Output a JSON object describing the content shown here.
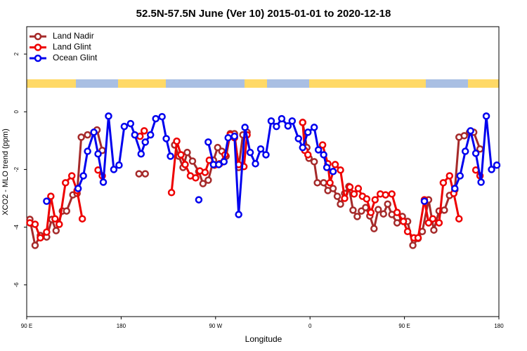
{
  "chart_data": {
    "type": "line",
    "title": "52.5N-57.5N June (Ver 10)   2015-01-01 to 2020-12-18",
    "x_label": "Longitude",
    "y_label": "XCO2 - MLO trend (ppm)",
    "xlim": [
      90,
      540
    ],
    "ylim": [
      -7.1,
      2.95
    ],
    "xticks": [
      {
        "value": 90,
        "label": "90 E"
      },
      180,
      {
        "value": 270,
        "label": "90 W"
      },
      {
        "value": 360,
        "label": "0"
      },
      {
        "value": 450,
        "label": "90 E"
      },
      {
        "value": 540,
        "label": "180"
      }
    ],
    "yticks": [
      -6,
      -4,
      -2,
      0,
      2
    ],
    "legend": "top-left",
    "series": [
      {
        "name": "Land Nadir",
        "color": "#a52a2a",
        "x": [
          93,
          98,
          103,
          109,
          114,
          118,
          124,
          128,
          134,
          138,
          142,
          148,
          157,
          162,
          null,
          197,
          203,
          null,
          231,
          235,
          239,
          243,
          248,
          254,
          258,
          263,
          268,
          272,
          276,
          280,
          284,
          288,
          292,
          296,
          300,
          null,
          353,
          357,
          359,
          364,
          367,
          373,
          377,
          382,
          386,
          389,
          393,
          397,
          401,
          405,
          409,
          413,
          417,
          421,
          425,
          430,
          434,
          438,
          443,
          448,
          453,
          458,
          463,
          467,
          473,
          478,
          483,
          488,
          493,
          498,
          502,
          507,
          512,
          516,
          522
        ],
        "values": [
          -3.73,
          -4.63,
          -4.29,
          -4.34,
          -3.73,
          -4.12,
          -3.44,
          -3.44,
          -2.88,
          -2.83,
          -0.88,
          -0.8,
          -0.63,
          -1.34,
          null,
          -2.15,
          -2.15,
          null,
          -1.15,
          -1.54,
          -1.93,
          -1.41,
          -1.71,
          -2.07,
          -2.49,
          -2.37,
          -1.68,
          -1.24,
          -1.37,
          -1.54,
          -0.76,
          -0.76,
          -1.93,
          -0.8,
          -0.71,
          null,
          -0.37,
          -1.24,
          -1.61,
          -1.73,
          -2.46,
          -2.46,
          -2.73,
          -2.66,
          -2.93,
          -3.2,
          -2.83,
          -2.59,
          -3.41,
          -3.63,
          -3.44,
          -3.32,
          -3.61,
          -4.05,
          -3.39,
          -3.54,
          -3.2,
          -3.56,
          -3.85,
          -3.63,
          -3.8,
          -4.63,
          -4.39,
          -4.15,
          -3.05,
          -4.1,
          -3.44,
          -3.41,
          -2.9,
          -2.71,
          -0.88,
          -0.83,
          -0.71,
          -0.71,
          -1.29
        ]
      },
      {
        "name": "Land Glint",
        "color": "#ee0000",
        "x": [
          93,
          98,
          103,
          109,
          113,
          117,
          121,
          127,
          133,
          138,
          143,
          null,
          158,
          162,
          null,
          198,
          202,
          null,
          228,
          233,
          237,
          241,
          246,
          251,
          255,
          260,
          264,
          269,
          274,
          279,
          284,
          288,
          292,
          297,
          300,
          null,
          353,
          355,
          358,
          null,
          372,
          377,
          379,
          384,
          389,
          393,
          398,
          402,
          406,
          410,
          414,
          418,
          422,
          427,
          432,
          438,
          443,
          449,
          453,
          459,
          463,
          469,
          473,
          477,
          483,
          487,
          493,
          497,
          502,
          null,
          518,
          522
        ],
        "values": [
          -3.85,
          -3.9,
          -4.37,
          -4.17,
          -2.93,
          -3.71,
          -3.9,
          -2.46,
          -2.22,
          -2.73,
          -3.71,
          null,
          -2.02,
          -2.22,
          null,
          -0.85,
          -0.66,
          null,
          -2.8,
          -1.02,
          -1.49,
          -1.83,
          -2.22,
          -2.29,
          -2.05,
          -2.1,
          -1.68,
          -1.85,
          -1.8,
          -1.49,
          -0.8,
          -0.9,
          -1.83,
          -1.9,
          -0.8,
          null,
          -0.37,
          -1.34,
          -1.49,
          null,
          -1.15,
          -1.8,
          -2.46,
          -1.83,
          -2.02,
          -3,
          -2.61,
          -2.85,
          -2.66,
          -2.93,
          -3.02,
          -3.49,
          -3.05,
          -2.85,
          -2.88,
          -2.85,
          -3.49,
          -3.8,
          -4.15,
          -4.37,
          -4.37,
          -3.05,
          -3.85,
          -3.71,
          -3.85,
          -2.46,
          -2.22,
          -2.83,
          -3.71,
          null,
          -2.02,
          -2.22
        ]
      },
      {
        "name": "Ocean Glint",
        "color": "#0000ee",
        "x": [
          109,
          null,
          139,
          144,
          148,
          154,
          158,
          163,
          168,
          173,
          178,
          183,
          189,
          193,
          199,
          203,
          208,
          213,
          219,
          223,
          227,
          null,
          254,
          null,
          263,
          268,
          273,
          278,
          282,
          288,
          292,
          298,
          303,
          308,
          313,
          318,
          323,
          328,
          333,
          339,
          343,
          349,
          353,
          358,
          364,
          368,
          373,
          376,
          382,
          null,
          469,
          null,
          498,
          503,
          508,
          513,
          518,
          523,
          528,
          533,
          538
        ],
        "values": [
          -3.1,
          null,
          -2.66,
          -2.22,
          -1.37,
          -0.71,
          -1.46,
          -2.44,
          -0.15,
          -2,
          -1.85,
          -0.51,
          -0.41,
          -0.8,
          -1.46,
          -1.05,
          -0.8,
          -0.24,
          -0.17,
          -0.93,
          -1.54,
          null,
          -3.05,
          null,
          -1.05,
          -1.83,
          -1.83,
          -1.73,
          -0.9,
          -0.85,
          -3.56,
          -0.54,
          -1.41,
          -1.8,
          -1.29,
          -1.49,
          -0.32,
          -0.51,
          -0.24,
          -0.49,
          -0.32,
          -0.93,
          -1.24,
          -0.71,
          -0.54,
          -1.32,
          -1.49,
          -1.93,
          -2.07,
          null,
          -3.1,
          null,
          -2.66,
          -2.22,
          -1.37,
          -0.66,
          -1.44,
          -2.44,
          -0.15,
          -2,
          -1.85
        ]
      }
    ]
  }
}
